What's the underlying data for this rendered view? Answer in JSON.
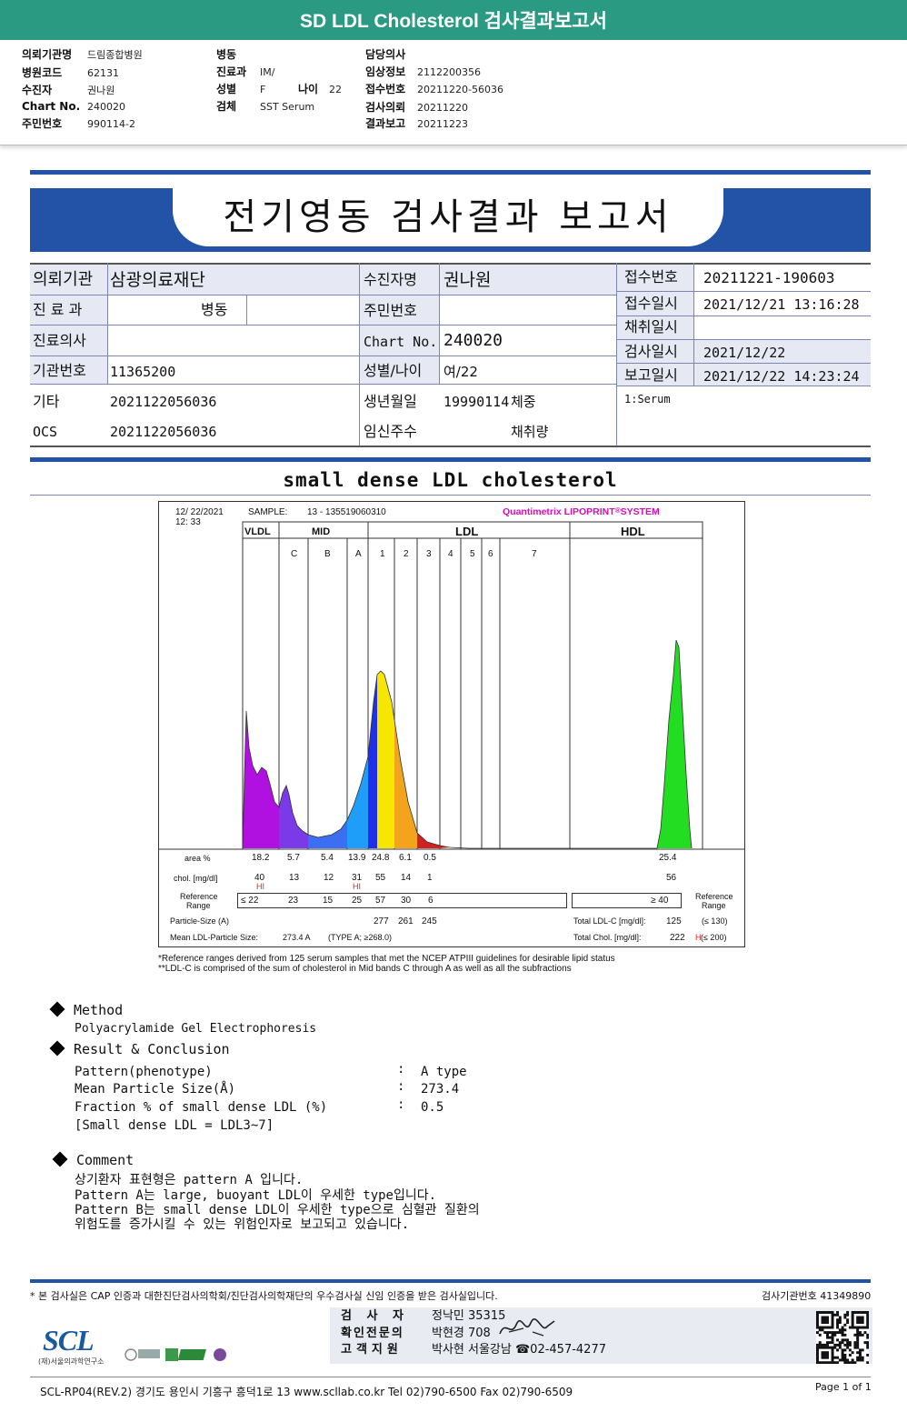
{
  "header": {
    "title": "SD LDL Cholesterol 검사결과보고서",
    "col1": [
      {
        "label": "의뢰기관명",
        "value": "드림종합병원"
      },
      {
        "label": "병원코드",
        "value": "62131"
      },
      {
        "label": "수진자",
        "value": "권나원"
      },
      {
        "label": "Chart No.",
        "value": "240020"
      },
      {
        "label": "주민번호",
        "value": "990114-2"
      }
    ],
    "col2": [
      {
        "label": "병동",
        "value": ""
      },
      {
        "label": "진료과",
        "value": "IM/"
      },
      {
        "label": "성별",
        "value": "F"
      },
      {
        "label": "검체",
        "value": "SST Serum"
      }
    ],
    "age_label": "나이",
    "age_value": "22",
    "col3": [
      {
        "label": "담당의사",
        "value": ""
      },
      {
        "label": "임상정보",
        "value": "2112200356"
      },
      {
        "label": "접수번호",
        "value": "20211220-56036"
      },
      {
        "label": "검사의뢰",
        "value": "20211220"
      },
      {
        "label": "결과보고",
        "value": "20211223"
      }
    ]
  },
  "report": {
    "title": "전기영동 검사결과 보고서",
    "table": {
      "org_label": "의뢰기관",
      "org_value": "삼광의료재단",
      "dept_label": "진 료 과",
      "dept_value": "병동",
      "doctor_label": "진료의사",
      "doctor_value": "",
      "inst_label": "기관번호",
      "inst_value": "11365200",
      "etc_label": "기타",
      "etc_value": "2021122056036",
      "ocs_label": "OCS",
      "ocs_value": "2021122056036",
      "name_label": "수진자명",
      "name_value": "권나원",
      "rrn_label": "주민번호",
      "rrn_value": "",
      "chart_label": "Chart No.",
      "chart_value": "240020",
      "sexage_label": "성별/나이",
      "sexage_value": "여/22",
      "dob_label": "생년월일",
      "dob_value": "19990114",
      "weight_label": "체중",
      "preg_label": "임신주수",
      "vol_label": "채취량",
      "recv_no_label": "접수번호",
      "recv_no_value": "20211221-190603",
      "recv_time_label": "접수일시",
      "recv_time_value": "2021/12/21 13:16:28",
      "collect_label": "채취일시",
      "collect_value": "",
      "test_label": "검사일시",
      "test_value": "2021/12/22",
      "report_label": "보고일시",
      "report_value": "2021/12/22 14:23:24",
      "specimen_note": "1:Serum"
    }
  },
  "section_title": "small dense LDL cholesterol",
  "lipoprint": {
    "date": "12/ 22/2021",
    "time": "12: 33",
    "sample_label": "SAMPLE:",
    "sample_value": "13 - 135519060310",
    "brand": "Quantimetrix LIPOPRINT",
    "brand_mark": "®",
    "brand_tail": "SYSTEM",
    "groups": [
      "VLDL",
      "MID",
      "LDL",
      "HDL"
    ],
    "bands": [
      "C",
      "B",
      "A",
      "1",
      "2",
      "3",
      "4",
      "5",
      "6",
      "7"
    ],
    "row_labels": {
      "area": "area %",
      "chol": "chol. [mg/dl]",
      "ref1": "Reference",
      "ref2": "Range",
      "particle": "Particle-Size (A)",
      "mean": "Mean LDL-Particle Size:",
      "ref_right1": "Reference",
      "ref_right2": "Range"
    },
    "area_values": [
      "18.2",
      "5.7",
      "5.4",
      "13.9",
      "24.8",
      "6.1",
      "0.5"
    ],
    "hdl_area": "25.4",
    "chol_values": [
      "40",
      "13",
      "12",
      "31",
      "55",
      "14",
      "1"
    ],
    "hdl_chol": "56",
    "hi_flag": "HI",
    "ref_values": [
      "≤ 22",
      "23",
      "15",
      "25",
      "57",
      "30",
      "6"
    ],
    "hdl_ref": "≥ 40",
    "particle_values": [
      "277",
      "261",
      "245"
    ],
    "mean_value": "273.4  A",
    "mean_type": "(TYPE A; ≥268.0)",
    "total_ldl_label": "Total LDL-C [mg/dl]:",
    "total_ldl_value": "125",
    "total_ldl_ref": "(≤ 130)",
    "total_chol_label": "Total Chol. [mg/dl]:",
    "total_chol_value": "222",
    "total_chol_flag": "H",
    "total_chol_ref": "(≤ 200)",
    "colors": {
      "vldl": "#b010e0",
      "midc": "#7a3ae8",
      "midb": "#3b6ef0",
      "mida": "#1e9ef8",
      "ldl1": "#2030e8",
      "ldl2": "#f6e600",
      "ldl3": "#f4a41c",
      "ldl4": "#d02020",
      "hdl": "#22dd22"
    }
  },
  "footnotes": [
    "*Reference ranges derived from 125 serum samples that met the NCEP ATPIII guidelines for desirable lipid status",
    "**LDL-C is comprised of the sum of cholesterol in Mid bands C through A as well as all the subfractions"
  ],
  "method": {
    "heading": "Method",
    "text": "Polyacrylamide Gel Electrophoresis"
  },
  "result": {
    "heading": "Result & Conclusion",
    "rows": [
      {
        "label": "Pattern(phenotype)",
        "value": "A type"
      },
      {
        "label": "Mean Particle Size(Å)",
        "value": "273.4"
      },
      {
        "label": "Fraction % of small dense LDL (%)",
        "value": "0.5"
      }
    ],
    "sep": ":",
    "note": "[Small dense LDL = LDL3~7]"
  },
  "comment": {
    "heading": "Comment",
    "lines": [
      "상기환자 표현형은 pattern A 입니다.",
      "Pattern A는 large, buoyant LDL이 우세한 type입니다.",
      "Pattern B는 small dense LDL이 우세한 type으로 심혈관 질환의",
      "위험도를 증가시킬 수 있는 위험인자로 보고되고 있습니다."
    ]
  },
  "footer": {
    "cert_note": "* 본 검사실은 CAP 인증과 대한진단검사의학회/진단검사의학재단의 우수검사실 신임 인증을 받은 검사실입니다.",
    "inst_no": "검사기관번호 41349890",
    "logo_text": "SCL",
    "logo_sub": "(재)서울의과학연구소",
    "examiner_label": "검 사 자",
    "examiner_value": "정낙민 35315",
    "specialist_label": "확인전문의",
    "specialist_value": "박현경 708",
    "signature": "박현경",
    "support_label": "고객지원",
    "support_value": "박사현 서울강남 ☎02-457-4277",
    "address": "SCL-RP04(REV.2)  경기도 용인시 기흥구 흥덕1로 13  www.scllab.co.kr  Tel 02)790-6500  Fax 02)790-6509",
    "page": "Page 1 of 1"
  }
}
